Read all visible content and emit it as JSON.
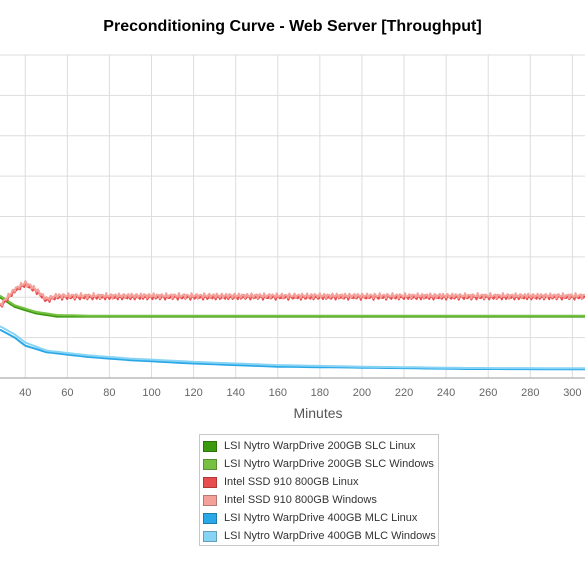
{
  "chart_data": {
    "type": "line",
    "title": "Preconditioning Curve - Web Server [Throughput]",
    "xlabel": "Minutes",
    "ylabel": "",
    "x_ticks": [
      40,
      60,
      80,
      100,
      120,
      140,
      160,
      180,
      200,
      220,
      240,
      260,
      280,
      300
    ],
    "xlim": [
      28,
      306
    ],
    "ylim": [
      0,
      100
    ],
    "grid": true,
    "legend_position": "bottom-center",
    "series": [
      {
        "name": "LSI Nytro WarpDrive 200GB SLC Linux",
        "color": "#3c9a0e",
        "x": [
          28,
          35,
          45,
          55,
          70,
          90,
          120,
          160,
          200,
          250,
          306
        ],
        "y": [
          25,
          22,
          20,
          19,
          19,
          19,
          19,
          19,
          19,
          19,
          19
        ]
      },
      {
        "name": "LSI Nytro WarpDrive 200GB SLC Windows",
        "color": "#76c043",
        "x": [
          28,
          35,
          45,
          55,
          70,
          90,
          120,
          160,
          200,
          250,
          306
        ],
        "y": [
          25.5,
          22.5,
          20.5,
          19.5,
          19.3,
          19.3,
          19.3,
          19.3,
          19.3,
          19.3,
          19.3
        ]
      },
      {
        "name": "Intel SSD 910 800GB Linux",
        "color": "#e94c4c",
        "x": [
          28,
          35,
          40,
          45,
          50,
          55,
          100,
          150,
          200,
          250,
          306
        ],
        "y": [
          22,
          27,
          29,
          27,
          24,
          25,
          25,
          25,
          25,
          25,
          25
        ]
      },
      {
        "name": "Intel SSD 910 800GB Windows",
        "color": "#f4a09a",
        "x": [
          28,
          35,
          40,
          45,
          50,
          55,
          100,
          150,
          200,
          250,
          306
        ],
        "y": [
          22.5,
          27.5,
          29.5,
          27.5,
          24.5,
          25.5,
          25.5,
          25.5,
          25.5,
          25.5,
          25.5
        ]
      },
      {
        "name": "LSI Nytro WarpDrive 400GB MLC Linux",
        "color": "#2aa7e6",
        "x": [
          28,
          35,
          40,
          50,
          70,
          90,
          120,
          160,
          200,
          250,
          306
        ],
        "y": [
          15,
          12.5,
          10,
          8,
          6.5,
          5.5,
          4.5,
          3.5,
          3.2,
          2.8,
          2.7
        ]
      },
      {
        "name": "LSI Nytro WarpDrive 400GB MLC Windows",
        "color": "#86d3f5",
        "x": [
          28,
          35,
          40,
          50,
          70,
          90,
          120,
          160,
          200,
          250,
          306
        ],
        "y": [
          16,
          13.5,
          11,
          8.5,
          7,
          6,
          5,
          4,
          3.5,
          3.1,
          3
        ]
      }
    ]
  }
}
